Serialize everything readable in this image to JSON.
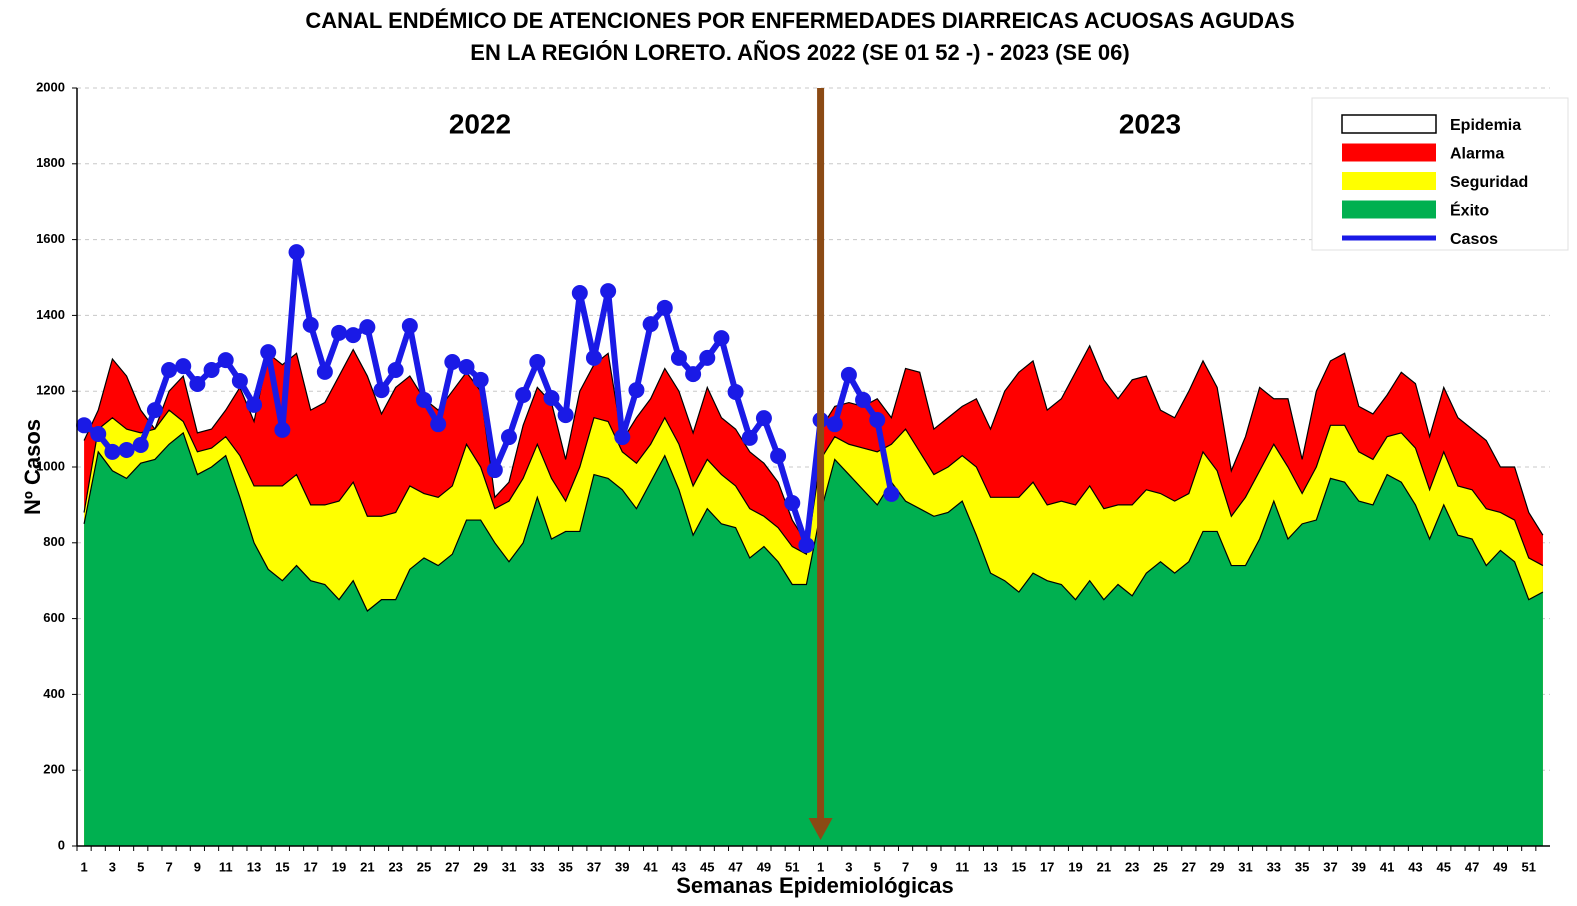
{
  "chart_data": {
    "type": "area",
    "title": [
      "CANAL ENDÉMICO DE ATENCIONES POR ENFERMEDADES DIARREICAS ACUOSAS AGUDAS",
      "EN LA REGIÓN LORETO.  AÑOS 2022 (SE 01 52 -) - 2023 (SE 06)"
    ],
    "annotations": [
      "2022",
      "2023"
    ],
    "x_label": "Semanas Epidemiológicas",
    "y_label": "Nº Casos",
    "categories": [
      1,
      null,
      3,
      null,
      5,
      null,
      7,
      null,
      9,
      null,
      11,
      null,
      13,
      null,
      15,
      null,
      17,
      null,
      19,
      null,
      21,
      null,
      23,
      null,
      25,
      null,
      27,
      null,
      29,
      null,
      31,
      null,
      33,
      null,
      35,
      null,
      37,
      null,
      39,
      null,
      41,
      null,
      43,
      null,
      45,
      null,
      47,
      null,
      49,
      null,
      51,
      null,
      1,
      null,
      3,
      null,
      5,
      null,
      7,
      null,
      9,
      null,
      11,
      null,
      13,
      null,
      15,
      null,
      17,
      null,
      19,
      null,
      21,
      null,
      23,
      null,
      25,
      null,
      27,
      null,
      29,
      null,
      31,
      null,
      33,
      null,
      35,
      null,
      37,
      null,
      39,
      null,
      41,
      null,
      43,
      null,
      45,
      null,
      47,
      null,
      49,
      null,
      51,
      null
    ],
    "series": [
      {
        "name": "Epidemia",
        "color": "#ffffff"
      },
      {
        "name": "Alarma",
        "color": "#ff0000",
        "values": [
          1070,
          1150,
          1285,
          1240,
          1150,
          1100,
          1200,
          1240,
          1090,
          1100,
          1150,
          1210,
          1120,
          1300,
          1270,
          1300,
          1150,
          1170,
          1240,
          1310,
          1240,
          1140,
          1210,
          1240,
          1180,
          1150,
          1200,
          1250,
          1200,
          920,
          960,
          1110,
          1210,
          1170,
          1020,
          1200,
          1270,
          1300,
          1070,
          1130,
          1180,
          1260,
          1200,
          1090,
          1210,
          1130,
          1100,
          1040,
          1010,
          960,
          860,
          800,
          1100,
          1160,
          1170,
          1160,
          1180,
          1130,
          1260,
          1250,
          1100,
          1130,
          1160,
          1180,
          1100,
          1200,
          1250,
          1280,
          1150,
          1180,
          1250,
          1320,
          1230,
          1180,
          1230,
          1240,
          1150,
          1130,
          1200,
          1280,
          1210,
          990,
          1080,
          1210,
          1180,
          1180,
          1020,
          1200,
          1280,
          1300,
          1160,
          1140,
          1190,
          1250,
          1220,
          1080,
          1210,
          1130,
          1100,
          1070,
          1000,
          1000,
          880,
          820
        ]
      },
      {
        "name": "Seguridad",
        "color": "#ffff00",
        "values": [
          880,
          1100,
          1130,
          1100,
          1090,
          1100,
          1150,
          1120,
          1040,
          1050,
          1080,
          1030,
          950,
          950,
          950,
          980,
          900,
          900,
          910,
          960,
          870,
          870,
          880,
          950,
          930,
          920,
          950,
          1060,
          1000,
          890,
          910,
          970,
          1060,
          970,
          910,
          1000,
          1130,
          1120,
          1040,
          1010,
          1060,
          1130,
          1060,
          950,
          1020,
          980,
          950,
          890,
          870,
          840,
          790,
          770,
          1020,
          1080,
          1060,
          1050,
          1040,
          1060,
          1100,
          1040,
          980,
          1000,
          1030,
          1000,
          920,
          920,
          920,
          960,
          900,
          910,
          900,
          950,
          890,
          900,
          900,
          940,
          930,
          910,
          930,
          1040,
          990,
          870,
          920,
          990,
          1060,
          1000,
          930,
          1000,
          1110,
          1110,
          1040,
          1020,
          1080,
          1090,
          1050,
          940,
          1040,
          950,
          940,
          890,
          880,
          860,
          760,
          740
        ]
      },
      {
        "name": "Éxito",
        "color": "#00b050",
        "values": [
          850,
          1040,
          990,
          970,
          1010,
          1020,
          1060,
          1090,
          980,
          1000,
          1030,
          920,
          800,
          730,
          700,
          740,
          700,
          690,
          650,
          700,
          620,
          650,
          650,
          730,
          760,
          740,
          770,
          860,
          860,
          800,
          750,
          800,
          920,
          810,
          830,
          830,
          980,
          970,
          940,
          890,
          960,
          1030,
          940,
          820,
          890,
          850,
          840,
          760,
          790,
          750,
          690,
          690,
          880,
          1020,
          980,
          940,
          900,
          960,
          910,
          890,
          870,
          880,
          910,
          820,
          720,
          700,
          670,
          720,
          700,
          690,
          650,
          700,
          650,
          690,
          660,
          720,
          750,
          720,
          750,
          830,
          830,
          740,
          740,
          810,
          910,
          810,
          850,
          860,
          970,
          960,
          910,
          900,
          980,
          960,
          900,
          810,
          900,
          820,
          810,
          740,
          780,
          750,
          650,
          670
        ]
      },
      {
        "name": "Casos",
        "color": "#1a1ae6",
        "type": "line",
        "values": [
          1110,
          1087,
          1040,
          1045,
          1058,
          1150,
          1256,
          1266,
          1219,
          1256,
          1282,
          1227,
          1164,
          1303,
          1098,
          1567,
          1375,
          1251,
          1354,
          1348,
          1369,
          1203,
          1256,
          1372,
          1177,
          1113,
          1277,
          1264,
          1230,
          992,
          1079,
          1190,
          1277,
          1182,
          1137,
          1459,
          1288,
          1464,
          1079,
          1203,
          1377,
          1420,
          1288,
          1245,
          1288,
          1340,
          1198,
          1077,
          1129,
          1029,
          905,
          794,
          1124,
          1113,
          1243,
          1177,
          1124,
          929,
          null,
          null,
          null,
          null,
          null,
          null,
          null,
          null,
          null,
          null,
          null,
          null,
          null,
          null,
          null,
          null,
          null,
          null,
          null,
          null,
          null,
          null,
          null,
          null,
          null,
          null,
          null,
          null,
          null,
          null,
          null,
          null,
          null,
          null,
          null,
          null,
          null,
          null,
          null,
          null,
          null,
          null,
          null,
          null,
          null,
          null
        ]
      }
    ],
    "ylim": [
      0,
      2000
    ],
    "yticks": [
      0,
      200,
      400,
      600,
      800,
      1000,
      1200,
      1400,
      1600,
      1800,
      2000
    ],
    "grid": true,
    "legend": "top-right"
  }
}
